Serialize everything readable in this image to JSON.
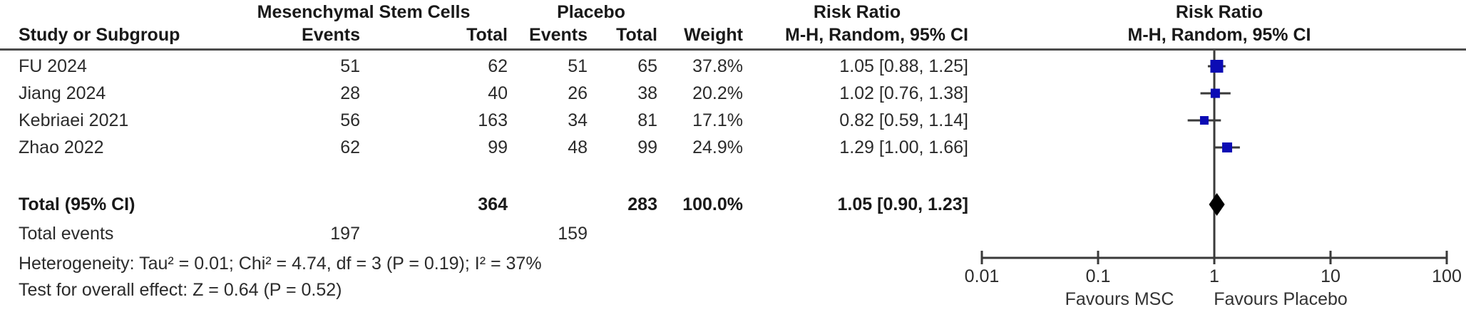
{
  "header": {
    "group1": "Mesenchymal Stem Cells",
    "group2": "Placebo",
    "risk_ratio_left": "Risk Ratio",
    "risk_ratio_right": "Risk Ratio",
    "method_left": "M-H, Random, 95% CI",
    "method_right": "M-H, Random, 95% CI",
    "col_study": "Study or Subgroup",
    "col_events_1": "Events",
    "col_total_1": "Total",
    "col_events_2": "Events",
    "col_total_2": "Total",
    "col_weight": "Weight"
  },
  "table": {
    "rows": [
      {
        "study": "FU 2024",
        "e1": "51",
        "t1": "62",
        "e2": "51",
        "t2": "65",
        "w": "37.8%",
        "rr": "1.05 [0.88, 1.25]"
      },
      {
        "study": "Jiang 2024",
        "e1": "28",
        "t1": "40",
        "e2": "26",
        "t2": "38",
        "w": "20.2%",
        "rr": "1.02 [0.76, 1.38]"
      },
      {
        "study": "Kebriaei 2021",
        "e1": "56",
        "t1": "163",
        "e2": "34",
        "t2": "81",
        "w": "17.1%",
        "rr": "0.82 [0.59, 1.14]"
      },
      {
        "study": "Zhao 2022",
        "e1": "62",
        "t1": "99",
        "e2": "48",
        "t2": "99",
        "w": "24.9%",
        "rr": "1.29 [1.00, 1.66]"
      }
    ],
    "total_row": {
      "study": "Total (95% CI)",
      "t1": "364",
      "t2": "283",
      "w": "100.0%",
      "rr": "1.05 [0.90, 1.23]"
    },
    "total_events": {
      "label": "Total events",
      "e1": "197",
      "e2": "159"
    }
  },
  "footnotes": {
    "heterogeneity": "Heterogeneity: Tau² = 0.01; Chi² = 4.74, df = 3 (P = 0.19); I² = 37%",
    "overall_effect": "Test for overall effect: Z = 0.64 (P = 0.52)"
  },
  "colors": {
    "marker_blue": "#0b0bb4",
    "diamond_black": "#000000",
    "line_gray": "#3a3a3a",
    "separator_gray": "#4b4b4b"
  },
  "chart_data": {
    "type": "forest",
    "effect_measure": "Risk Ratio",
    "method": "M-H, Random, 95% CI",
    "x_scale": "log10",
    "x_range": [
      0.01,
      100
    ],
    "x_ticks": [
      "0.01",
      "0.1",
      "1",
      "10",
      "100"
    ],
    "x_tick_values": [
      0.01,
      0.1,
      1,
      10,
      100
    ],
    "reference_line": 1,
    "studies": [
      {
        "name": "FU 2024",
        "rr": 1.05,
        "ci_low": 0.88,
        "ci_high": 1.25,
        "weight_pct": 37.8
      },
      {
        "name": "Jiang 2024",
        "rr": 1.02,
        "ci_low": 0.76,
        "ci_high": 1.38,
        "weight_pct": 20.2
      },
      {
        "name": "Kebriaei 2021",
        "rr": 0.82,
        "ci_low": 0.59,
        "ci_high": 1.14,
        "weight_pct": 17.1
      },
      {
        "name": "Zhao 2022",
        "rr": 1.29,
        "ci_low": 1.0,
        "ci_high": 1.66,
        "weight_pct": 24.9
      }
    ],
    "total": {
      "name": "Total (95% CI)",
      "rr": 1.05,
      "ci_low": 0.9,
      "ci_high": 1.23,
      "weight_pct": 100.0
    },
    "favours_left": "Favours MSC",
    "favours_right": "Favours Placebo",
    "legend_position": "none",
    "grid": false
  }
}
